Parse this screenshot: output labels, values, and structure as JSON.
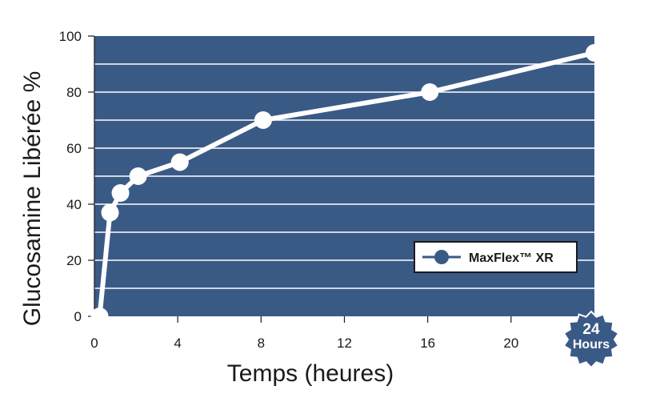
{
  "chart_data": {
    "type": "line",
    "ylabel": "Glucosamine Libérée %",
    "xlabel": "Temps (heures)",
    "xlim": [
      0,
      24
    ],
    "ylim": [
      0,
      100
    ],
    "x_ticks": [
      "0",
      "4",
      "8",
      "12",
      "16",
      "20"
    ],
    "y_ticks": [
      "0",
      "20",
      "40",
      "60",
      "80",
      "100"
    ],
    "grid": "horizontal",
    "legend_position": "bottom-right",
    "series": [
      {
        "name": "MaxFlex™ XR",
        "x": [
          0.25,
          0.75,
          1.25,
          2.1,
          4.1,
          8.1,
          16.1,
          24
        ],
        "y": [
          0,
          37,
          44,
          50,
          55,
          70,
          80,
          94
        ]
      }
    ],
    "badge": {
      "line1": "24",
      "line2": "Hours"
    },
    "colors": {
      "plot_background": "#3a5a86",
      "line": "#ffffff",
      "marker": "#ffffff",
      "legend_marker": "#3a5a86",
      "badge": "#3a5a86"
    }
  }
}
